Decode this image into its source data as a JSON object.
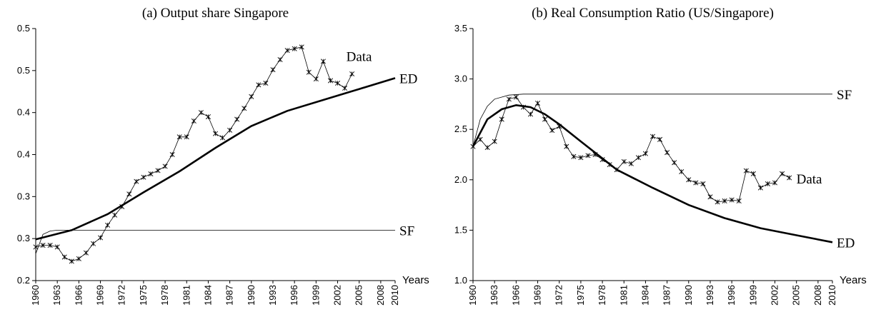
{
  "chart_data": [
    {
      "type": "line",
      "title": "(a) Output share Singapore",
      "xlabel": "Years",
      "xlim": [
        1960,
        2010
      ],
      "xticks": [
        1960,
        1963,
        1966,
        1969,
        1972,
        1975,
        1978,
        1981,
        1984,
        1987,
        1990,
        1993,
        1996,
        1999,
        2002,
        2005,
        2008,
        2010
      ],
      "ylim": [
        0.2,
        0.5
      ],
      "yticks": [
        0.2,
        {
          "value": 0.25,
          "label": "0.3"
        },
        0.3,
        {
          "value": 0.35,
          "label": "0.4"
        },
        0.4,
        {
          "value": 0.45,
          "label": "0.5"
        },
        0.5
      ],
      "series": [
        {
          "name": "Data",
          "color": "#000000",
          "line_width": 0.8,
          "marker": "star",
          "x": [
            1960,
            1961,
            1962,
            1963,
            1964,
            1965,
            1966,
            1967,
            1968,
            1969,
            1970,
            1971,
            1972,
            1973,
            1974,
            1975,
            1976,
            1977,
            1978,
            1979,
            1980,
            1981,
            1982,
            1983,
            1984,
            1985,
            1986,
            1987,
            1988,
            1989,
            1990,
            1991,
            1992,
            1993,
            1994,
            1995,
            1996,
            1997,
            1998,
            1999,
            2000,
            2001,
            2002,
            2003,
            2004
          ],
          "values": [
            0.24,
            0.242,
            0.242,
            0.24,
            0.228,
            0.223,
            0.226,
            0.233,
            0.244,
            0.251,
            0.266,
            0.278,
            0.288,
            0.303,
            0.318,
            0.323,
            0.327,
            0.331,
            0.336,
            0.35,
            0.371,
            0.371,
            0.39,
            0.4,
            0.395,
            0.375,
            0.37,
            0.379,
            0.392,
            0.405,
            0.419,
            0.433,
            0.435,
            0.451,
            0.463,
            0.474,
            0.476,
            0.478,
            0.448,
            0.44,
            0.461,
            0.438,
            0.435,
            0.429,
            0.446
          ]
        },
        {
          "name": "ED",
          "color": "#000000",
          "line_width": 2.6,
          "x": [
            1960,
            1965,
            1970,
            1975,
            1980,
            1985,
            1990,
            1995,
            2000,
            2005,
            2010
          ],
          "values": [
            0.249,
            0.26,
            0.279,
            0.305,
            0.33,
            0.358,
            0.384,
            0.402,
            0.415,
            0.428,
            0.441
          ]
        },
        {
          "name": "SF",
          "color": "#000000",
          "line_width": 0.8,
          "x": [
            1960,
            1961,
            1962,
            1963,
            2010
          ],
          "values": [
            0.232,
            0.255,
            0.259,
            0.26,
            0.26
          ]
        }
      ]
    },
    {
      "type": "line",
      "title": "(b) Real Consumption Ratio (US/Singapore)",
      "xlabel": "Years",
      "xlim": [
        1960,
        2010
      ],
      "xticks": [
        1960,
        1963,
        1966,
        1969,
        1972,
        1975,
        1978,
        1981,
        1984,
        1987,
        1990,
        1993,
        1996,
        1999,
        2002,
        2005,
        2008,
        2010
      ],
      "ylim": [
        1.0,
        3.5
      ],
      "yticks": [
        {
          "value": 1,
          "label": "1.0"
        },
        1.5,
        {
          "value": 2,
          "label": "2.0"
        },
        2.5,
        {
          "value": 3,
          "label": "3.0"
        },
        3.5
      ],
      "series": [
        {
          "name": "Data",
          "color": "#000000",
          "line_width": 0.8,
          "marker": "star",
          "x": [
            1960,
            1961,
            1962,
            1963,
            1964,
            1965,
            1966,
            1967,
            1968,
            1969,
            1970,
            1971,
            1972,
            1973,
            1974,
            1975,
            1976,
            1977,
            1978,
            1979,
            1980,
            1981,
            1982,
            1983,
            1984,
            1985,
            1986,
            1987,
            1988,
            1989,
            1990,
            1991,
            1992,
            1993,
            1994,
            1995,
            1996,
            1997,
            1998,
            1999,
            2000,
            2001,
            2002,
            2003,
            2004
          ],
          "values": [
            2.33,
            2.4,
            2.32,
            2.38,
            2.6,
            2.8,
            2.82,
            2.72,
            2.65,
            2.76,
            2.6,
            2.49,
            2.53,
            2.33,
            2.23,
            2.22,
            2.24,
            2.25,
            2.2,
            2.15,
            2.1,
            2.18,
            2.16,
            2.22,
            2.26,
            2.43,
            2.4,
            2.27,
            2.17,
            2.08,
            2.0,
            1.97,
            1.96,
            1.83,
            1.78,
            1.79,
            1.8,
            1.79,
            2.09,
            2.06,
            1.92,
            1.96,
            1.97,
            2.06,
            2.02
          ]
        },
        {
          "name": "ED",
          "color": "#000000",
          "line_width": 2.6,
          "x": [
            1960,
            1962,
            1964,
            1966,
            1968,
            1970,
            1972,
            1975,
            1980,
            1985,
            1990,
            1995,
            2000,
            2005,
            2010
          ],
          "values": [
            2.33,
            2.6,
            2.7,
            2.74,
            2.72,
            2.65,
            2.55,
            2.38,
            2.1,
            1.92,
            1.75,
            1.62,
            1.52,
            1.45,
            1.38
          ]
        },
        {
          "name": "SF",
          "color": "#000000",
          "line_width": 0.8,
          "x": [
            1960,
            1961,
            1962,
            1963,
            1965,
            1967,
            2010
          ],
          "values": [
            2.33,
            2.6,
            2.73,
            2.8,
            2.84,
            2.85,
            2.85
          ]
        }
      ]
    }
  ]
}
